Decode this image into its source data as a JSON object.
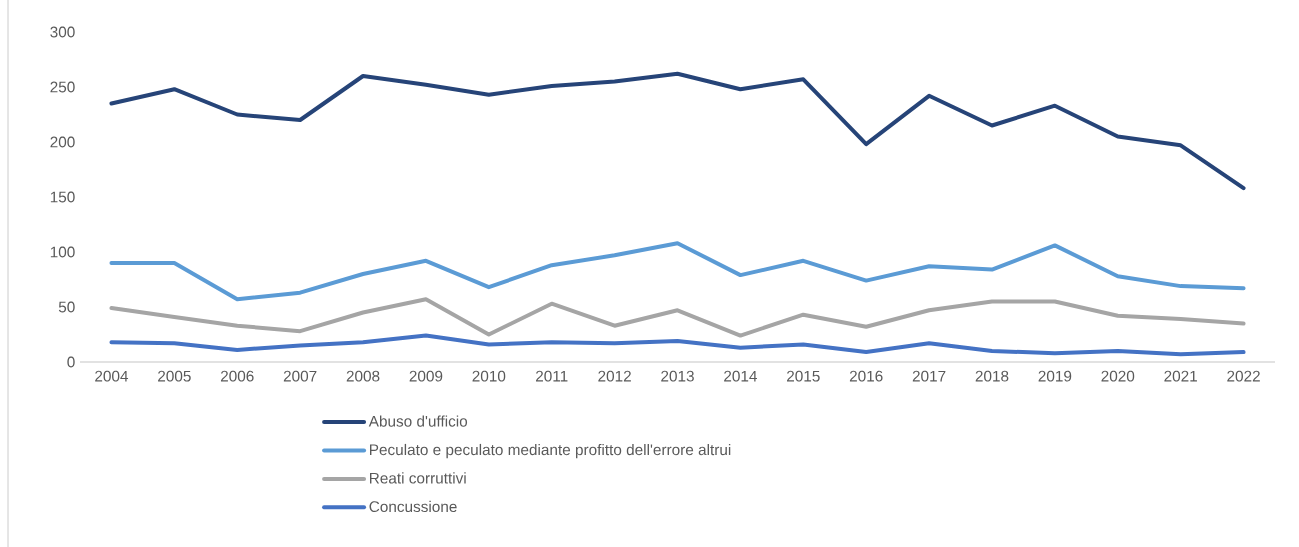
{
  "chart_data": {
    "type": "line",
    "categories": [
      "2004",
      "2005",
      "2006",
      "2007",
      "2008",
      "2009",
      "2010",
      "2011",
      "2012",
      "2013",
      "2014",
      "2015",
      "2016",
      "2017",
      "2018",
      "2019",
      "2020",
      "2021",
      "2022"
    ],
    "ylim": [
      0,
      300
    ],
    "yticks": [
      0,
      50,
      100,
      150,
      200,
      250,
      300
    ],
    "legend": "bottom",
    "marker": "none",
    "line_style": "solid",
    "series": [
      {
        "name": "Abuso d'ufficio",
        "color": "#264478",
        "values": [
          235,
          248,
          225,
          220,
          260,
          252,
          243,
          251,
          255,
          262,
          248,
          257,
          198,
          242,
          215,
          233,
          205,
          197,
          158
        ]
      },
      {
        "name": "Peculato e peculato mediante profitto dell'errore altrui",
        "color": "#5b9bd5",
        "values": [
          90,
          90,
          57,
          63,
          80,
          92,
          68,
          88,
          97,
          108,
          79,
          92,
          74,
          87,
          84,
          106,
          78,
          69,
          67
        ]
      },
      {
        "name": "Reati corruttivi",
        "color": "#a5a5a5",
        "values": [
          49,
          41,
          33,
          28,
          45,
          57,
          25,
          53,
          33,
          47,
          24,
          43,
          32,
          47,
          55,
          55,
          42,
          39,
          35
        ]
      },
      {
        "name": "Concussione",
        "color": "#4472c4",
        "values": [
          18,
          17,
          11,
          15,
          18,
          24,
          16,
          18,
          17,
          19,
          13,
          16,
          9,
          17,
          10,
          8,
          10,
          7,
          9
        ]
      }
    ]
  }
}
